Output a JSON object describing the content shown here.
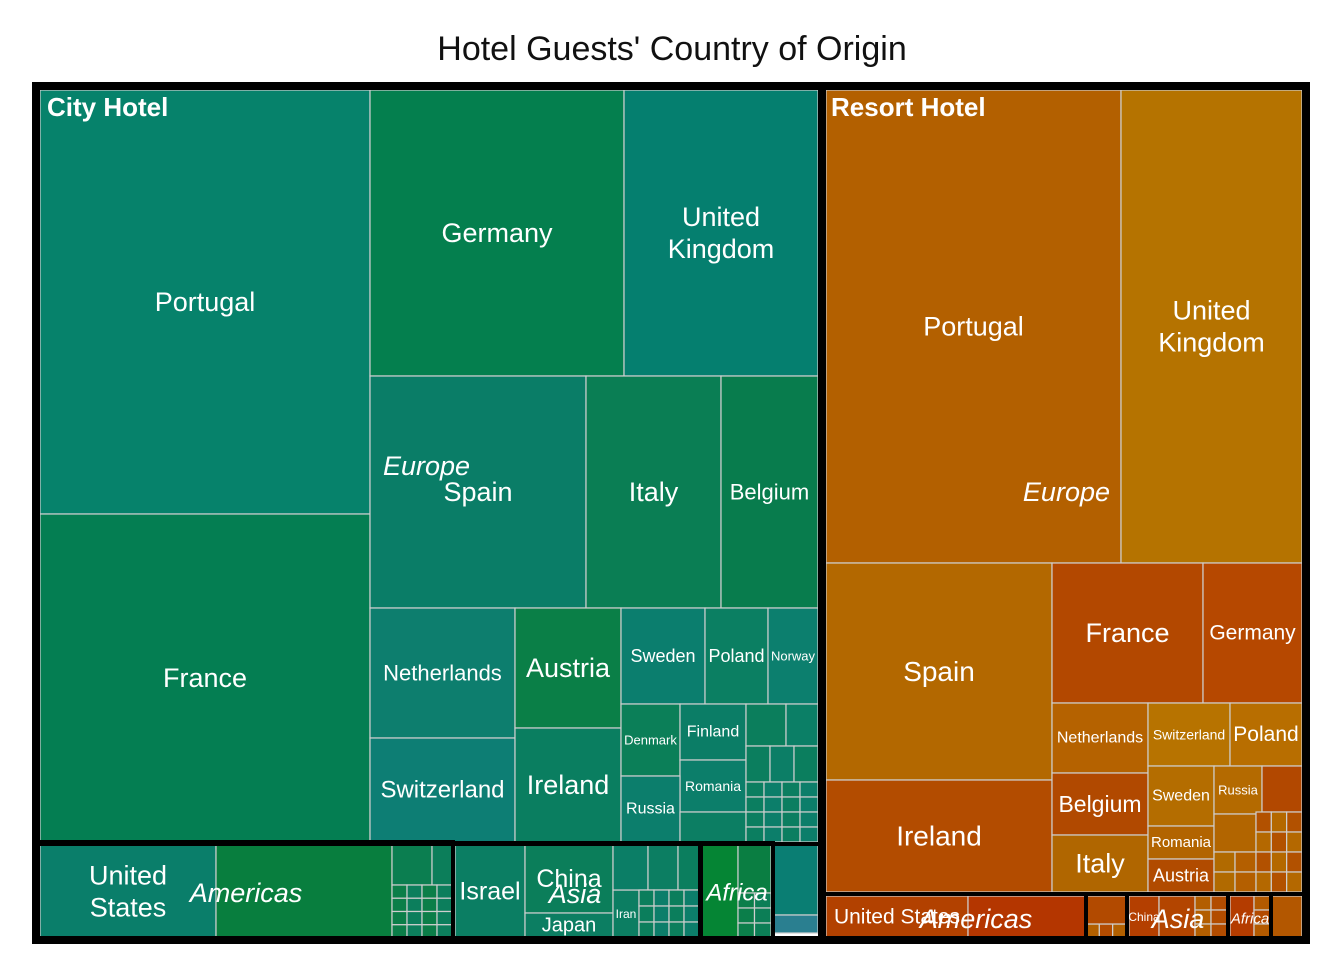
{
  "chart_data": {
    "type": "treemap",
    "title": "Hotel Guests' Country of Origin",
    "colors": {
      "frame": "#000000",
      "cell_border": "#cfcfcf",
      "label": "#ffffff",
      "background": "#ffffff"
    },
    "hotels": [
      {
        "name": "City Hotel",
        "value": 630,
        "label_color": "#ffffff",
        "continents": [
          {
            "name": "Europe",
            "value": 530,
            "countries": [
              {
                "name": "Portugal",
                "value": 136,
                "color": "#06826B"
              },
              {
                "name": "France",
                "value": 105,
                "color": "#047E52"
              },
              {
                "name": "Germany",
                "value": 56,
                "color": "#047F4E"
              },
              {
                "name": "United Kingdom",
                "value": 43,
                "color": "#057F6F"
              },
              {
                "name": "Spain",
                "value": 38.5,
                "color": "#0A7D67"
              },
              {
                "name": "Italy",
                "value": 24.2,
                "color": "#0A7E54"
              },
              {
                "name": "Belgium",
                "value": 17.3,
                "color": "#087C4D"
              },
              {
                "name": "Netherlands",
                "value": 11.8,
                "color": "#0D7E6E"
              },
              {
                "name": "Austria",
                "value": 9.5,
                "color": "#0A7F47"
              },
              {
                "name": "Switzerland",
                "value": 11.8,
                "color": "#0D7E74"
              },
              {
                "name": "Ireland",
                "value": 9.7,
                "color": "#0A7E60"
              },
              {
                "name": "Sweden",
                "value": 6.2,
                "color": "#0B7E6E"
              },
              {
                "name": "Poland",
                "value": 4.7,
                "color": "#0B7F62"
              },
              {
                "name": "Norway",
                "value": 3.8,
                "color": "#0C7F6E"
              },
              {
                "name": "Denmark",
                "value": 3.6,
                "color": "#0B7F58"
              },
              {
                "name": "Finland",
                "value": 2.5,
                "color": "#0B7D66"
              },
              {
                "name": "Romania",
                "value": 2.7,
                "color": "#0C7E6A"
              },
              {
                "name": "Russia",
                "value": 2.9,
                "color": "#0C7E6C"
              }
            ]
          },
          {
            "name": "Americas",
            "value": 40,
            "countries": [
              {
                "name": "United States",
                "value": 14.7,
                "color": "#0A7E6A"
              }
            ]
          },
          {
            "name": "Asia",
            "value": 25,
            "countries": [
              {
                "name": "Israel",
                "value": 5.7,
                "color": "#0B7E63"
              },
              {
                "name": "China",
                "value": 5.9,
                "color": "#0B7E5A"
              },
              {
                "name": "Japan",
                "value": 1.1,
                "color": "#0C7E62"
              },
              {
                "name": "Iran",
                "value": 0.9,
                "color": "#0C7E62"
              }
            ]
          },
          {
            "name": "Africa",
            "value": 8,
            "countries": []
          }
        ]
      },
      {
        "name": "Resort Hotel",
        "value": 310,
        "label_color": "#ffffff",
        "continents": [
          {
            "name": "Europe",
            "value": 290,
            "countries": [
              {
                "name": "Portugal",
                "value": 87,
                "color": "#B36000"
              },
              {
                "name": "United Kingdom",
                "value": 53,
                "color": "#B57300"
              },
              {
                "name": "Spain",
                "value": 26.5,
                "color": "#B36800"
              },
              {
                "name": "Ireland",
                "value": 16.2,
                "color": "#B34C00"
              },
              {
                "name": "France",
                "value": 10.2,
                "color": "#B34800"
              },
              {
                "name": "Germany",
                "value": 7.1,
                "color": "#B64800"
              },
              {
                "name": "Netherlands",
                "value": 4,
                "color": "#B56200"
              },
              {
                "name": "Switzerland",
                "value": 2.8,
                "color": "#B77300"
              },
              {
                "name": "Poland",
                "value": 2.5,
                "color": "#B86E00"
              },
              {
                "name": "Belgium",
                "value": 3.7,
                "color": "#B14900"
              },
              {
                "name": "Italy",
                "value": 4.9,
                "color": "#B06600"
              },
              {
                "name": "Sweden",
                "value": 2.3,
                "color": "#B46D00"
              },
              {
                "name": "Russia",
                "value": 1.4,
                "color": "#B46A00"
              },
              {
                "name": "Romania",
                "value": 1,
                "color": "#B26400"
              },
              {
                "name": "Austria",
                "value": 1.2,
                "color": "#B14B00"
              }
            ]
          },
          {
            "name": "Americas",
            "value": 12,
            "countries": [
              {
                "name": "United States",
                "value": 5.2,
                "color": "#B24100"
              }
            ]
          },
          {
            "name": "Asia",
            "value": 4,
            "countries": [
              {
                "name": "China",
                "value": 0.9,
                "color": "#B43F00"
              }
            ]
          },
          {
            "name": "Africa",
            "value": 2.5,
            "countries": []
          }
        ]
      }
    ]
  }
}
